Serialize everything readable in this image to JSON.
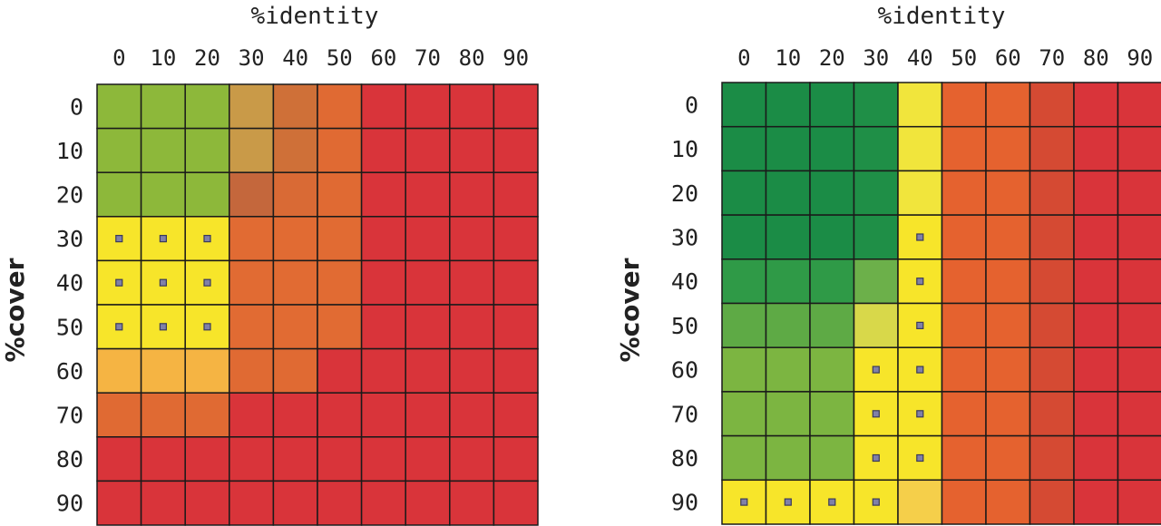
{
  "chart_data": [
    {
      "type": "heatmap",
      "xlabel": "%identity",
      "ylabel": "%cover",
      "x_categories": [
        "0",
        "10",
        "20",
        "30",
        "40",
        "50",
        "60",
        "70",
        "80",
        "90"
      ],
      "y_categories": [
        "0",
        "10",
        "20",
        "30",
        "40",
        "50",
        "60",
        "70",
        "80",
        "90"
      ],
      "cells": [
        [
          "#8db83a",
          "#8db83a",
          "#8db83a",
          "#c99a48",
          "#cf7038",
          "#e06a33",
          "#d9343a",
          "#d9343a",
          "#d9343a",
          "#d9343a"
        ],
        [
          "#8db83a",
          "#8db83a",
          "#8db83a",
          "#c99a48",
          "#cf7038",
          "#e06a33",
          "#d9343a",
          "#d9343a",
          "#d9343a",
          "#d9343a"
        ],
        [
          "#8db83a",
          "#8db83a",
          "#8db83a",
          "#c4673c",
          "#d96a35",
          "#e06a33",
          "#d9343a",
          "#d9343a",
          "#d9343a",
          "#d9343a"
        ],
        [
          "#f7e52a",
          "#f7e52a",
          "#f7e52a",
          "#e16b33",
          "#e16b33",
          "#e16b33",
          "#d9343a",
          "#d9343a",
          "#d9343a",
          "#d9343a"
        ],
        [
          "#f7e52a",
          "#f7e52a",
          "#f7e52a",
          "#e16b33",
          "#e16b33",
          "#e16b33",
          "#d9343a",
          "#d9343a",
          "#d9343a",
          "#d9343a"
        ],
        [
          "#f7e52a",
          "#f7e52a",
          "#f7e52a",
          "#e16b33",
          "#e16b33",
          "#e16b33",
          "#d9343a",
          "#d9343a",
          "#d9343a",
          "#d9343a"
        ],
        [
          "#f5b443",
          "#f5b443",
          "#f5b443",
          "#e06a33",
          "#e06a33",
          "#d9343a",
          "#d9343a",
          "#d9343a",
          "#d9343a",
          "#d9343a"
        ],
        [
          "#e06a33",
          "#e06a33",
          "#e06a33",
          "#d9343a",
          "#d9343a",
          "#d9343a",
          "#d9343a",
          "#d9343a",
          "#d9343a",
          "#d9343a"
        ],
        [
          "#d9343a",
          "#d9343a",
          "#d9343a",
          "#d9343a",
          "#d9343a",
          "#d9343a",
          "#d9343a",
          "#d9343a",
          "#d9343a",
          "#d9343a"
        ],
        [
          "#d9343a",
          "#d9343a",
          "#d9343a",
          "#d9343a",
          "#d9343a",
          "#d9343a",
          "#d9343a",
          "#d9343a",
          "#d9343a",
          "#d9343a"
        ]
      ],
      "markers": [
        [
          3,
          0
        ],
        [
          3,
          1
        ],
        [
          3,
          2
        ],
        [
          4,
          0
        ],
        [
          4,
          1
        ],
        [
          4,
          2
        ],
        [
          5,
          0
        ],
        [
          5,
          1
        ],
        [
          5,
          2
        ]
      ]
    },
    {
      "type": "heatmap",
      "xlabel": "%identity",
      "ylabel": "%cover",
      "x_categories": [
        "0",
        "10",
        "20",
        "30",
        "40",
        "50",
        "60",
        "70",
        "80",
        "90"
      ],
      "y_categories": [
        "0",
        "10",
        "20",
        "30",
        "40",
        "50",
        "60",
        "70",
        "80",
        "90"
      ],
      "cells": [
        [
          "#1b8c46",
          "#1b8c46",
          "#1b8c46",
          "#1f8f47",
          "#f1e53c",
          "#e5622f",
          "#e5622f",
          "#d54a33",
          "#d9343a",
          "#d9343a"
        ],
        [
          "#1b8c46",
          "#1b8c46",
          "#1b8c46",
          "#1f8f47",
          "#f1e53c",
          "#e5622f",
          "#e5622f",
          "#d54a33",
          "#d9343a",
          "#d9343a"
        ],
        [
          "#1b8c46",
          "#1b8c46",
          "#1b8c46",
          "#1f8f47",
          "#f1e53c",
          "#e5622f",
          "#e5622f",
          "#d54a33",
          "#d9343a",
          "#d9343a"
        ],
        [
          "#1b8c46",
          "#1b8c46",
          "#1b8c46",
          "#1f8f47",
          "#f7e52a",
          "#e5622f",
          "#e5622f",
          "#d54a33",
          "#d9343a",
          "#d9343a"
        ],
        [
          "#2f9a47",
          "#2f9a47",
          "#2f9a47",
          "#6cb04a",
          "#f7e52a",
          "#e5622f",
          "#e5622f",
          "#d54a33",
          "#d9343a",
          "#d9343a"
        ],
        [
          "#5eaa45",
          "#5eaa45",
          "#5eaa45",
          "#d8d84a",
          "#f7e52a",
          "#e5622f",
          "#e5622f",
          "#d54a33",
          "#d9343a",
          "#d9343a"
        ],
        [
          "#7cb541",
          "#7cb541",
          "#7cb541",
          "#f7e52a",
          "#f7e52a",
          "#e5622f",
          "#e5622f",
          "#d54a33",
          "#d9343a",
          "#d9343a"
        ],
        [
          "#7cb541",
          "#7cb541",
          "#7cb541",
          "#f7e52a",
          "#f7e52a",
          "#e5622f",
          "#e5622f",
          "#d54a33",
          "#d9343a",
          "#d9343a"
        ],
        [
          "#7cb541",
          "#7cb541",
          "#7cb541",
          "#f7e52a",
          "#f7e52a",
          "#e5622f",
          "#e5622f",
          "#d54a33",
          "#d9343a",
          "#d9343a"
        ],
        [
          "#f7e52a",
          "#f7e52a",
          "#f7e52a",
          "#f7e52a",
          "#f5cf4a",
          "#e5622f",
          "#e5622f",
          "#d54a33",
          "#d9343a",
          "#d9343a"
        ]
      ],
      "markers": [
        [
          3,
          4
        ],
        [
          4,
          4
        ],
        [
          5,
          4
        ],
        [
          6,
          3
        ],
        [
          6,
          4
        ],
        [
          7,
          3
        ],
        [
          7,
          4
        ],
        [
          8,
          3
        ],
        [
          8,
          4
        ],
        [
          9,
          0
        ],
        [
          9,
          1
        ],
        [
          9,
          2
        ],
        [
          9,
          3
        ]
      ]
    }
  ]
}
